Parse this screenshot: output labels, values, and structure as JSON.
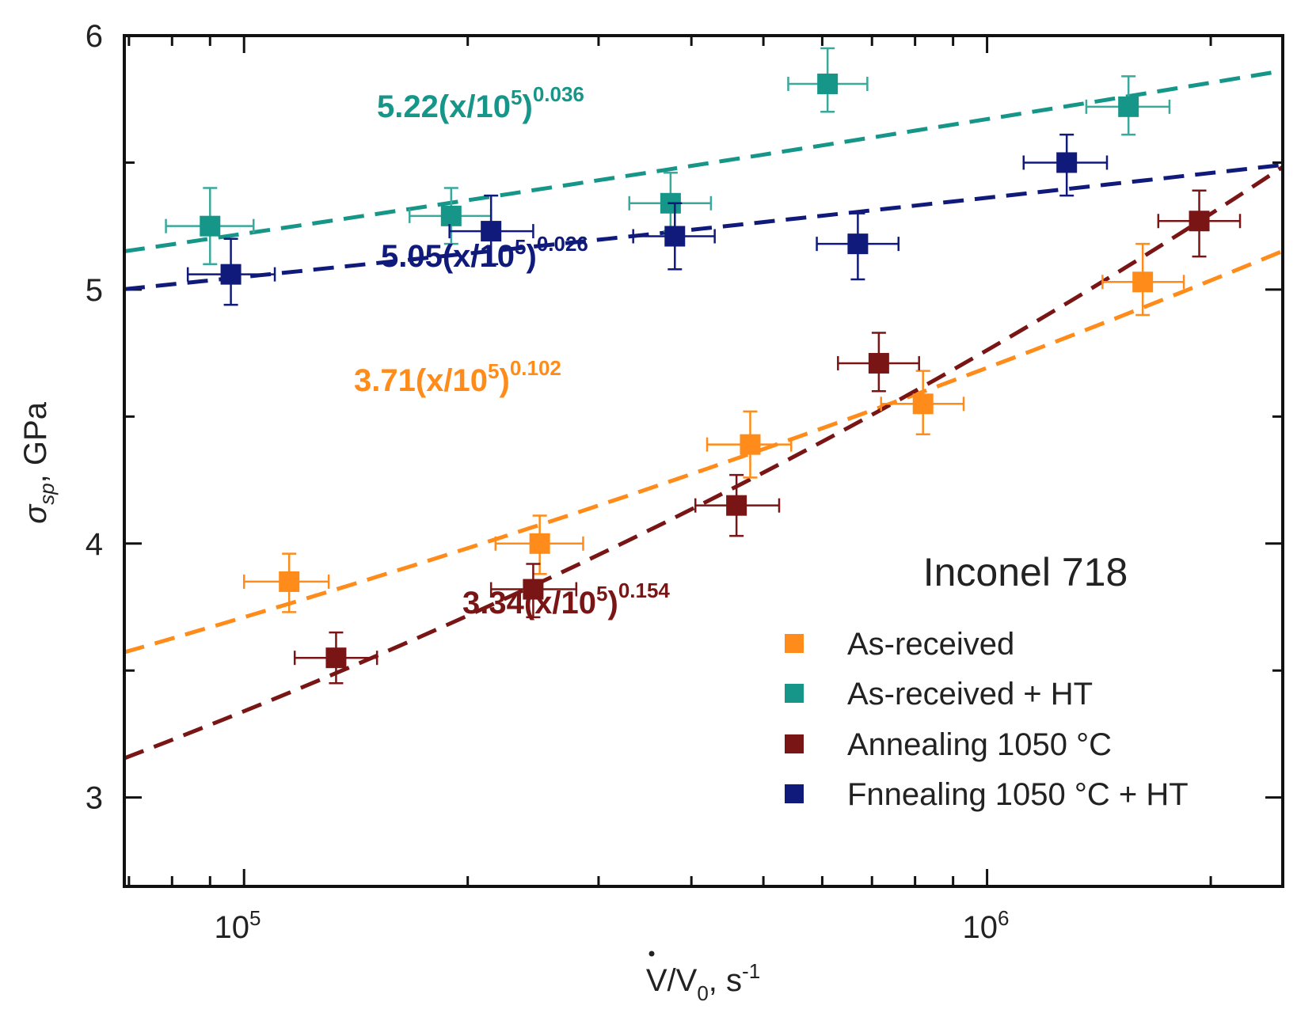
{
  "chart_data": {
    "type": "scatter",
    "title": "Inconel 718",
    "xlabel": {
      "main": "V/V",
      "sub": "0",
      "unit": ", s",
      "sup": "-1"
    },
    "ylabel": {
      "sym": "σ",
      "sub": "sp",
      "unit": ", GPa"
    },
    "x_scale": "log",
    "xlim": [
      69000,
      2500000
    ],
    "ylim": [
      2.65,
      6.0
    ],
    "x_ticks": [
      {
        "base": "10",
        "exp": "5",
        "value": 100000
      },
      {
        "base": "10",
        "exp": "6",
        "value": 1000000
      }
    ],
    "y_ticks": [
      "3",
      "4",
      "5",
      "6"
    ],
    "series": [
      {
        "key": "asr",
        "name": "As-received",
        "color": "#ff8c1a",
        "errorbar_color": "#ff8c1a",
        "fit_label": {
          "coef": "3.71(x/10",
          "sup5": "5",
          "close": ")",
          "exp": "0.102"
        },
        "fit": {
          "a": 3.71,
          "b": 0.102,
          "x0": 100000
        },
        "points": [
          {
            "x": 115000,
            "y": 3.85,
            "xlo": 100000,
            "xhi": 130000,
            "ylo": 3.73,
            "yhi": 3.96
          },
          {
            "x": 250000,
            "y": 4.0,
            "xlo": 218000,
            "xhi": 286000,
            "ylo": 3.88,
            "yhi": 4.11
          },
          {
            "x": 480000,
            "y": 4.39,
            "xlo": 420000,
            "xhi": 545000,
            "ylo": 4.26,
            "yhi": 4.52
          },
          {
            "x": 820000,
            "y": 4.55,
            "xlo": 720000,
            "xhi": 930000,
            "ylo": 4.43,
            "yhi": 4.68
          },
          {
            "x": 1620000,
            "y": 5.03,
            "xlo": 1430000,
            "xhi": 1840000,
            "ylo": 4.9,
            "yhi": 5.18
          }
        ]
      },
      {
        "key": "asrht",
        "name": "As-received + HT",
        "color": "#169688",
        "errorbar_color": "#3aa89b",
        "fit_label": {
          "coef": "5.22(x/10",
          "sup5": "5",
          "close": ")",
          "exp": "0.036"
        },
        "fit": {
          "a": 5.22,
          "b": 0.036,
          "x0": 100000
        },
        "points": [
          {
            "x": 90000,
            "y": 5.25,
            "xlo": 78500,
            "xhi": 103000,
            "ylo": 5.1,
            "yhi": 5.4
          },
          {
            "x": 190000,
            "y": 5.29,
            "xlo": 167000,
            "xhi": 215000,
            "ylo": 5.18,
            "yhi": 5.4
          },
          {
            "x": 375000,
            "y": 5.34,
            "xlo": 330000,
            "xhi": 425000,
            "ylo": 5.23,
            "yhi": 5.46
          },
          {
            "x": 610000,
            "y": 5.81,
            "xlo": 540000,
            "xhi": 690000,
            "ylo": 5.7,
            "yhi": 5.95
          },
          {
            "x": 1550000,
            "y": 5.72,
            "xlo": 1360000,
            "xhi": 1760000,
            "ylo": 5.61,
            "yhi": 5.84
          }
        ]
      },
      {
        "key": "ann",
        "name": "Annealing 1050 °C",
        "color": "#7a1515",
        "errorbar_color": "#7a1515",
        "fit_label": {
          "coef": "3.34(x/10",
          "sup5": "5",
          "close": ")",
          "exp": "0.154"
        },
        "fit": {
          "a": 3.34,
          "b": 0.154,
          "x0": 100000
        },
        "points": [
          {
            "x": 133000,
            "y": 3.55,
            "xlo": 117000,
            "xhi": 151000,
            "ylo": 3.45,
            "yhi": 3.65
          },
          {
            "x": 245000,
            "y": 3.82,
            "xlo": 215000,
            "xhi": 280000,
            "ylo": 3.71,
            "yhi": 3.92
          },
          {
            "x": 460000,
            "y": 4.15,
            "xlo": 405000,
            "xhi": 525000,
            "ylo": 4.03,
            "yhi": 4.27
          },
          {
            "x": 715000,
            "y": 4.71,
            "xlo": 630000,
            "xhi": 810000,
            "ylo": 4.6,
            "yhi": 4.83
          },
          {
            "x": 1930000,
            "y": 5.27,
            "xlo": 1700000,
            "xhi": 2190000,
            "ylo": 5.13,
            "yhi": 5.39
          }
        ]
      },
      {
        "key": "annht",
        "name": "Fnnealing 1050 °C + HT",
        "color": "#101a7a",
        "errorbar_color": "#101a7a",
        "fit_label": {
          "coef": "5.05(x/10",
          "sup5": "5",
          "close": ")",
          "exp": "0.026"
        },
        "fit": {
          "a": 5.05,
          "b": 0.026,
          "x0": 100000
        },
        "points": [
          {
            "x": 96000,
            "y": 5.06,
            "xlo": 84000,
            "xhi": 110000,
            "ylo": 4.94,
            "yhi": 5.2
          },
          {
            "x": 215000,
            "y": 5.23,
            "xlo": 189000,
            "xhi": 245000,
            "ylo": 5.1,
            "yhi": 5.37
          },
          {
            "x": 380000,
            "y": 5.21,
            "xlo": 334000,
            "xhi": 430000,
            "ylo": 5.08,
            "yhi": 5.34
          },
          {
            "x": 670000,
            "y": 5.18,
            "xlo": 590000,
            "xhi": 760000,
            "ylo": 5.04,
            "yhi": 5.3
          },
          {
            "x": 1280000,
            "y": 5.5,
            "xlo": 1120000,
            "xhi": 1450000,
            "ylo": 5.37,
            "yhi": 5.61
          }
        ]
      }
    ],
    "legend_position": "bottom-right"
  }
}
